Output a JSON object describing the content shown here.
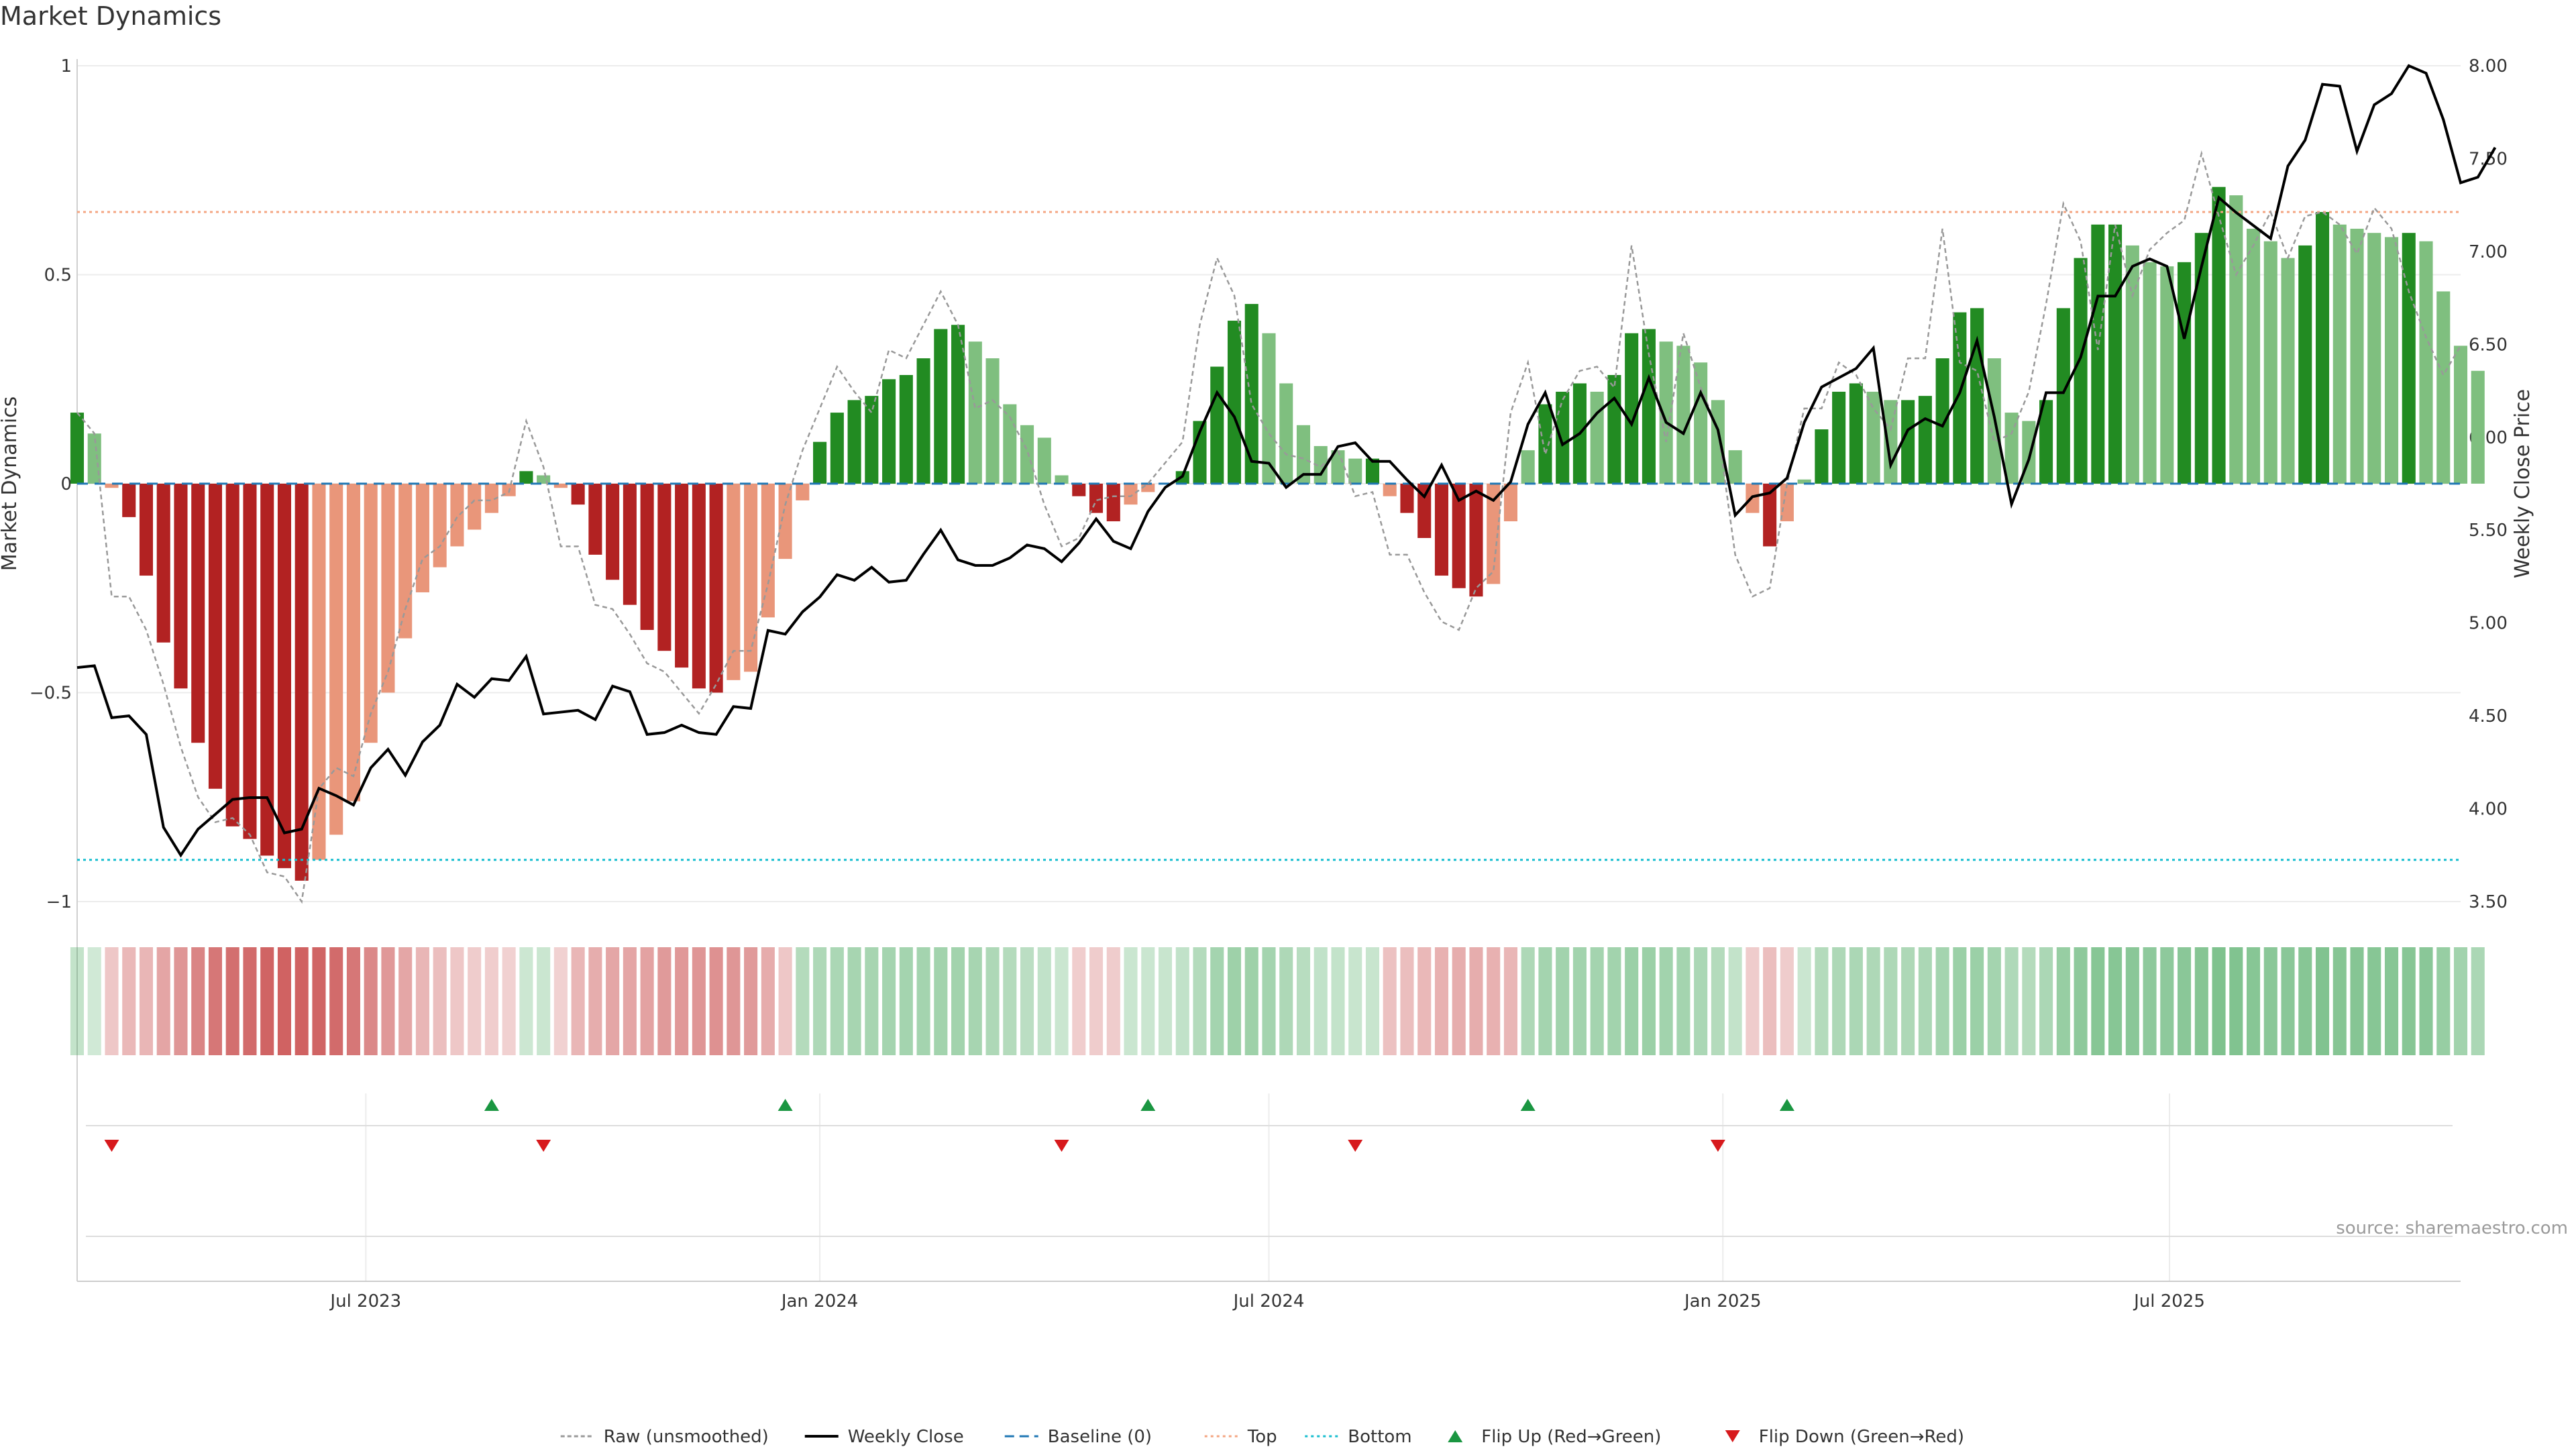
{
  "title": "Market Dynamics",
  "source": "source: sharemaestro.com",
  "colors": {
    "pos_strong": "#228b22",
    "pos_weak": "#7fbf7f",
    "neg_strong": "#b22222",
    "neg_weak": "#e9967a",
    "raw": "#999999",
    "close": "#000000",
    "baseline": "#1f77b4",
    "top": "#f4a582",
    "bottom": "#17becf",
    "flip_up": "#1a9641",
    "flip_down": "#d7191c"
  },
  "chart_data": {
    "type": "bar",
    "ylabel": "Market Dynamics",
    "ylabel_right": "Weekly Close Price",
    "ylim": [
      -1,
      1
    ],
    "ylim_right": [
      3.5,
      8.0
    ],
    "yticks": [
      {
        "v": 1,
        "t": "1"
      },
      {
        "v": 0.5,
        "t": "0.5"
      },
      {
        "v": 0,
        "t": "0"
      },
      {
        "v": -0.5,
        "t": "−0.5"
      },
      {
        "v": -1,
        "t": "−1"
      }
    ],
    "yticks_right": [
      {
        "v": 8.0,
        "t": "8.00"
      },
      {
        "v": 7.5,
        "t": "7.50"
      },
      {
        "v": 7.0,
        "t": "7.00"
      },
      {
        "v": 6.5,
        "t": "6.50"
      },
      {
        "v": 6.0,
        "t": "6.00"
      },
      {
        "v": 5.5,
        "t": "5.50"
      },
      {
        "v": 5.0,
        "t": "5.00"
      },
      {
        "v": 4.5,
        "t": "4.50"
      },
      {
        "v": 4.0,
        "t": "4.00"
      },
      {
        "v": 3.5,
        "t": "3.50"
      }
    ],
    "xlim": [
      "2023-03-06",
      "2025-10-27"
    ],
    "x_ticks": [
      {
        "date": "2023-07-01",
        "t": "Jul 2023"
      },
      {
        "date": "2024-01-01",
        "t": "Jan 2024"
      },
      {
        "date": "2024-07-01",
        "t": "Jul 2024"
      },
      {
        "date": "2025-01-01",
        "t": "Jan 2025"
      },
      {
        "date": "2025-07-01",
        "t": "Jul 2025"
      }
    ],
    "weeks": {
      "start": "2023-03-06",
      "step_days": 7
    },
    "dynamics": [
      0.17,
      0.12,
      -0.01,
      -0.08,
      -0.22,
      -0.38,
      -0.49,
      -0.62,
      -0.73,
      -0.82,
      -0.85,
      -0.89,
      -0.92,
      -0.95,
      -0.9,
      -0.84,
      -0.76,
      -0.62,
      -0.5,
      -0.37,
      -0.26,
      -0.2,
      -0.15,
      -0.11,
      -0.07,
      -0.03,
      0.03,
      0.02,
      -0.01,
      -0.05,
      -0.17,
      -0.23,
      -0.29,
      -0.35,
      -0.4,
      -0.44,
      -0.49,
      -0.5,
      -0.47,
      -0.45,
      -0.32,
      -0.18,
      -0.04,
      0.1,
      0.17,
      0.2,
      0.21,
      0.25,
      0.26,
      0.3,
      0.37,
      0.38,
      0.34,
      0.3,
      0.19,
      0.14,
      0.11,
      0.02,
      -0.03,
      -0.07,
      -0.09,
      -0.05,
      -0.02,
      0.0,
      0.03,
      0.15,
      0.28,
      0.39,
      0.43,
      0.36,
      0.24,
      0.14,
      0.09,
      0.08,
      0.06,
      0.06,
      -0.03,
      -0.07,
      -0.13,
      -0.22,
      -0.25,
      -0.27,
      -0.24,
      -0.09,
      0.08,
      0.19,
      0.22,
      0.24,
      0.22,
      0.26,
      0.36,
      0.37,
      0.34,
      0.33,
      0.29,
      0.2,
      0.08,
      -0.07,
      -0.15,
      -0.09,
      0.01,
      0.13,
      0.22,
      0.24,
      0.22,
      0.2,
      0.2,
      0.21,
      0.3,
      0.41,
      0.42,
      0.3,
      0.17,
      0.15,
      0.2,
      0.42,
      0.54,
      0.62,
      0.62,
      0.57,
      0.53,
      0.52,
      0.53,
      0.6,
      0.71,
      0.69,
      0.61,
      0.58,
      0.54,
      0.57,
      0.65,
      0.62,
      0.61,
      0.6,
      0.59,
      0.6,
      0.58,
      0.46,
      0.33,
      0.27
    ],
    "raw": [
      0.17,
      0.12,
      -0.27,
      -0.27,
      -0.35,
      -0.48,
      -0.63,
      -0.75,
      -0.81,
      -0.8,
      -0.84,
      -0.93,
      -0.94,
      -1.0,
      -0.73,
      -0.68,
      -0.7,
      -0.55,
      -0.45,
      -0.3,
      -0.18,
      -0.15,
      -0.08,
      -0.04,
      -0.04,
      -0.02,
      0.15,
      0.04,
      -0.15,
      -0.15,
      -0.29,
      -0.3,
      -0.36,
      -0.43,
      -0.45,
      -0.5,
      -0.55,
      -0.48,
      -0.4,
      -0.4,
      -0.24,
      -0.05,
      0.08,
      0.18,
      0.28,
      0.22,
      0.17,
      0.32,
      0.3,
      0.38,
      0.46,
      0.38,
      0.18,
      0.2,
      0.16,
      0.08,
      -0.05,
      -0.15,
      -0.13,
      -0.04,
      -0.03,
      -0.03,
      0.0,
      0.05,
      0.1,
      0.38,
      0.54,
      0.45,
      0.19,
      0.12,
      0.07,
      0.06,
      0.04,
      0.08,
      -0.03,
      -0.02,
      -0.17,
      -0.17,
      -0.26,
      -0.33,
      -0.35,
      -0.25,
      -0.21,
      0.17,
      0.29,
      0.07,
      0.2,
      0.27,
      0.28,
      0.23,
      0.57,
      0.31,
      0.1,
      0.36,
      0.23,
      0.13,
      -0.17,
      -0.27,
      -0.25,
      0.0,
      0.18,
      0.18,
      0.29,
      0.26,
      0.18,
      0.13,
      0.3,
      0.3,
      0.61,
      0.29,
      0.27,
      0.1,
      0.12,
      0.22,
      0.43,
      0.67,
      0.58,
      0.32,
      0.62,
      0.45,
      0.56,
      0.6,
      0.63,
      0.79,
      0.64,
      0.5,
      0.57,
      0.65,
      0.54,
      0.64,
      0.65,
      0.62,
      0.55,
      0.66,
      0.61,
      0.46,
      0.35,
      0.26,
      0.33
    ],
    "close": [
      4.76,
      4.77,
      4.49,
      4.5,
      4.4,
      3.9,
      3.75,
      3.89,
      3.97,
      4.05,
      4.06,
      4.06,
      3.87,
      3.89,
      4.11,
      4.07,
      4.02,
      4.22,
      4.32,
      4.18,
      4.36,
      4.45,
      4.67,
      4.6,
      4.7,
      4.69,
      4.82,
      4.51,
      4.52,
      4.53,
      4.48,
      4.66,
      4.63,
      4.4,
      4.41,
      4.45,
      4.41,
      4.4,
      4.55,
      4.54,
      4.96,
      4.94,
      5.06,
      5.14,
      5.26,
      5.23,
      5.3,
      5.22,
      5.23,
      5.37,
      5.5,
      5.34,
      5.31,
      5.31,
      5.35,
      5.42,
      5.4,
      5.33,
      5.43,
      5.56,
      5.44,
      5.4,
      5.6,
      5.73,
      5.79,
      6.03,
      6.24,
      6.11,
      5.87,
      5.86,
      5.73,
      5.8,
      5.8,
      5.95,
      5.97,
      5.87,
      5.87,
      5.77,
      5.68,
      5.85,
      5.66,
      5.71,
      5.66,
      5.76,
      6.07,
      6.24,
      5.96,
      6.02,
      6.13,
      6.21,
      6.07,
      6.32,
      6.08,
      6.02,
      6.24,
      6.04,
      5.58,
      5.68,
      5.7,
      5.78,
      6.08,
      6.27,
      6.32,
      6.37,
      6.48,
      5.85,
      6.04,
      6.1,
      6.06,
      6.24,
      6.52,
      6.11,
      5.64,
      5.88,
      6.24,
      6.24,
      6.43,
      6.76,
      6.76,
      6.92,
      6.96,
      6.92,
      6.53,
      6.92,
      7.29,
      7.21,
      7.14,
      7.07,
      7.46,
      7.6,
      7.9,
      7.89,
      7.54,
      7.79,
      7.85,
      8.0,
      7.96,
      7.71,
      7.37,
      7.4,
      7.56
    ],
    "color_strip": [
      0.18,
      0.1,
      -0.18,
      -0.28,
      -0.3,
      -0.4,
      -0.5,
      -0.6,
      -0.68,
      -0.74,
      -0.76,
      -0.8,
      -0.82,
      -0.82,
      -0.8,
      -0.76,
      -0.68,
      -0.58,
      -0.48,
      -0.38,
      -0.3,
      -0.24,
      -0.18,
      -0.16,
      -0.14,
      -0.12,
      0.12,
      0.14,
      -0.12,
      -0.3,
      -0.34,
      -0.38,
      -0.4,
      -0.42,
      -0.46,
      -0.48,
      -0.5,
      -0.52,
      -0.5,
      -0.46,
      -0.36,
      -0.18,
      0.3,
      0.34,
      0.36,
      0.38,
      0.38,
      0.4,
      0.4,
      0.4,
      0.42,
      0.42,
      0.38,
      0.34,
      0.3,
      0.24,
      0.2,
      0.14,
      -0.14,
      -0.16,
      -0.16,
      0.14,
      0.14,
      0.16,
      0.2,
      0.3,
      0.4,
      0.44,
      0.44,
      0.4,
      0.34,
      0.26,
      0.2,
      0.18,
      0.16,
      0.16,
      -0.22,
      -0.24,
      -0.28,
      -0.32,
      -0.34,
      -0.34,
      -0.32,
      -0.3,
      0.34,
      0.4,
      0.42,
      0.42,
      0.4,
      0.42,
      0.46,
      0.46,
      0.42,
      0.4,
      0.36,
      0.3,
      0.18,
      -0.16,
      -0.24,
      -0.16,
      0.14,
      0.3,
      0.34,
      0.36,
      0.34,
      0.34,
      0.34,
      0.36,
      0.4,
      0.46,
      0.46,
      0.4,
      0.32,
      0.3,
      0.36,
      0.5,
      0.56,
      0.6,
      0.6,
      0.58,
      0.56,
      0.56,
      0.58,
      0.62,
      0.66,
      0.64,
      0.6,
      0.58,
      0.58,
      0.6,
      0.64,
      0.62,
      0.62,
      0.6,
      0.6,
      0.6,
      0.58,
      0.5,
      0.42,
      0.36
    ],
    "top": 0.65,
    "bottom": -0.9,
    "baseline": 0,
    "flip_up": [
      "2023-08-21",
      "2023-12-18",
      "2024-05-13",
      "2024-10-14",
      "2025-01-27"
    ],
    "flip_down": [
      "2023-03-20",
      "2023-09-11",
      "2024-04-08",
      "2024-08-05",
      "2024-12-30"
    ],
    "legend": {
      "position": "bottom-center",
      "items": [
        {
          "label": "Raw (unsmoothed)",
          "kind": "raw"
        },
        {
          "label": "Weekly Close",
          "kind": "close"
        },
        {
          "label": "Baseline (0)",
          "kind": "baseline"
        },
        {
          "label": "Top",
          "kind": "top"
        },
        {
          "label": "Bottom",
          "kind": "bottom"
        },
        {
          "label": "Flip Up (Red→Green)",
          "kind": "flip_up"
        },
        {
          "label": "Flip Down (Green→Red)",
          "kind": "flip_down"
        }
      ]
    }
  }
}
